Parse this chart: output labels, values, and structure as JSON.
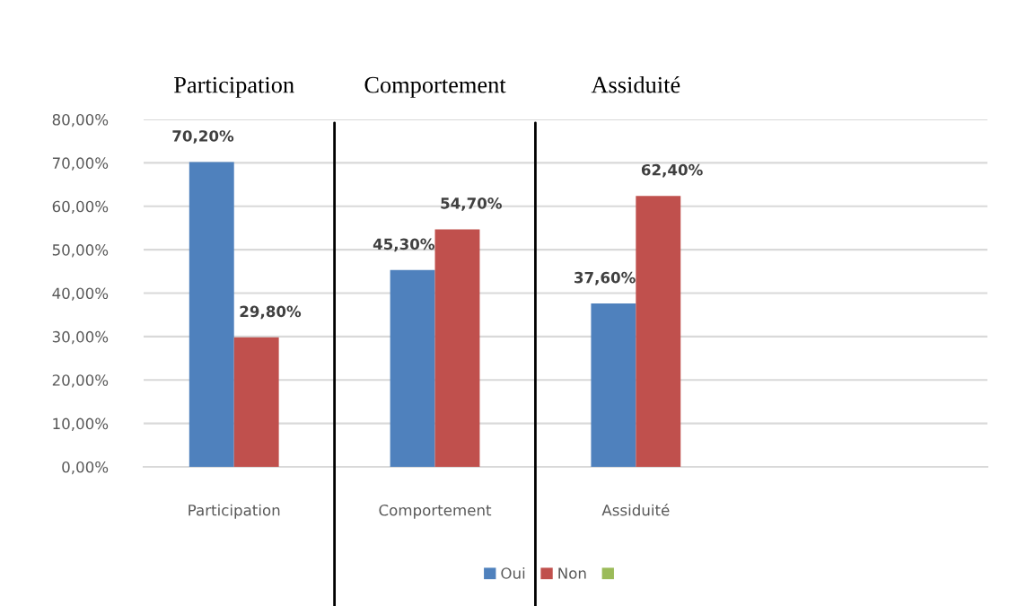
{
  "chart_data": {
    "type": "bar",
    "categories": [
      "Participation",
      "Comportement",
      "Assiduité",
      null
    ],
    "series": [
      {
        "name": "Oui",
        "color": "#4f81bd",
        "values": [
          70.2,
          45.3,
          37.6,
          null
        ],
        "value_labels": [
          "70,20%",
          "45,30%",
          "37,60%",
          null
        ]
      },
      {
        "name": "Non",
        "color": "#c0504d",
        "values": [
          29.8,
          54.7,
          62.4,
          null
        ],
        "value_labels": [
          "29,80%",
          "54,70%",
          "62,40%",
          null
        ]
      }
    ],
    "ylim": [
      0,
      80
    ],
    "yticks": [
      {
        "value": 0,
        "label": "0,00%"
      },
      {
        "value": 10,
        "label": "10,00%"
      },
      {
        "value": 20,
        "label": "20,00%"
      },
      {
        "value": 30,
        "label": "30,00%"
      },
      {
        "value": 40,
        "label": "40,00%"
      },
      {
        "value": 50,
        "label": "50,00%"
      },
      {
        "value": 60,
        "label": "60,00%"
      },
      {
        "value": 70,
        "label": "70,00%"
      },
      {
        "value": 80,
        "label": "80,00%"
      }
    ],
    "grid": "y",
    "legend": "bottom",
    "annotations": [
      "Participation",
      "Comportement",
      "Assiduité"
    ]
  }
}
